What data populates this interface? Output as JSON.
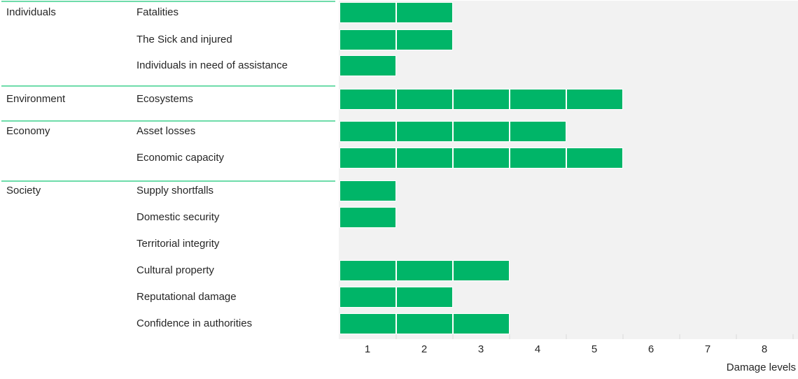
{
  "chart_data": {
    "type": "bar",
    "orientation": "horizontal",
    "title": "",
    "xlabel": "Damage levels",
    "ylabel": "",
    "x_tick_labels": [
      "1",
      "2",
      "3",
      "4",
      "5",
      "6",
      "7",
      "8"
    ],
    "x_range": [
      0.5,
      8.5
    ],
    "bar_start": 0.5,
    "unit_segments": true,
    "grid": false,
    "legend": "none",
    "groups": [
      {
        "name": "Individuals",
        "items": [
          {
            "label": "Fatalities",
            "value": 2,
            "bar_end": 2.5
          },
          {
            "label": "The Sick and injured",
            "value": 2,
            "bar_end": 2.5
          },
          {
            "label": "Individuals in need of assistance",
            "value": 1,
            "bar_end": 1.5
          }
        ]
      },
      {
        "name": "Environment",
        "items": [
          {
            "label": "Ecosystems",
            "value": 5,
            "bar_end": 5.5
          }
        ]
      },
      {
        "name": "Economy",
        "items": [
          {
            "label": "Asset losses",
            "value": 4,
            "bar_end": 4.5
          },
          {
            "label": "Economic capacity",
            "value": 5,
            "bar_end": 5.5
          }
        ]
      },
      {
        "name": "Society",
        "items": [
          {
            "label": "Supply shortfalls",
            "value": 1,
            "bar_end": 1.5
          },
          {
            "label": "Domestic security",
            "value": 1,
            "bar_end": 1.5
          },
          {
            "label": "Territorial integrity",
            "value": 0,
            "bar_end": 0.5
          },
          {
            "label": "Cultural property",
            "value": 3,
            "bar_end": 3.5
          },
          {
            "label": "Reputational damage",
            "value": 2,
            "bar_end": 2.5
          },
          {
            "label": "Confidence in authorities",
            "value": 3,
            "bar_end": 3.5
          }
        ]
      }
    ],
    "colors": {
      "bar_fill": "#00b568",
      "bar_gap": "#ffffff",
      "plot_background": "#f2f2f2",
      "group_separator": "#6edcaa",
      "text": "#262626",
      "tick_mark": "#e6e6e6"
    }
  }
}
